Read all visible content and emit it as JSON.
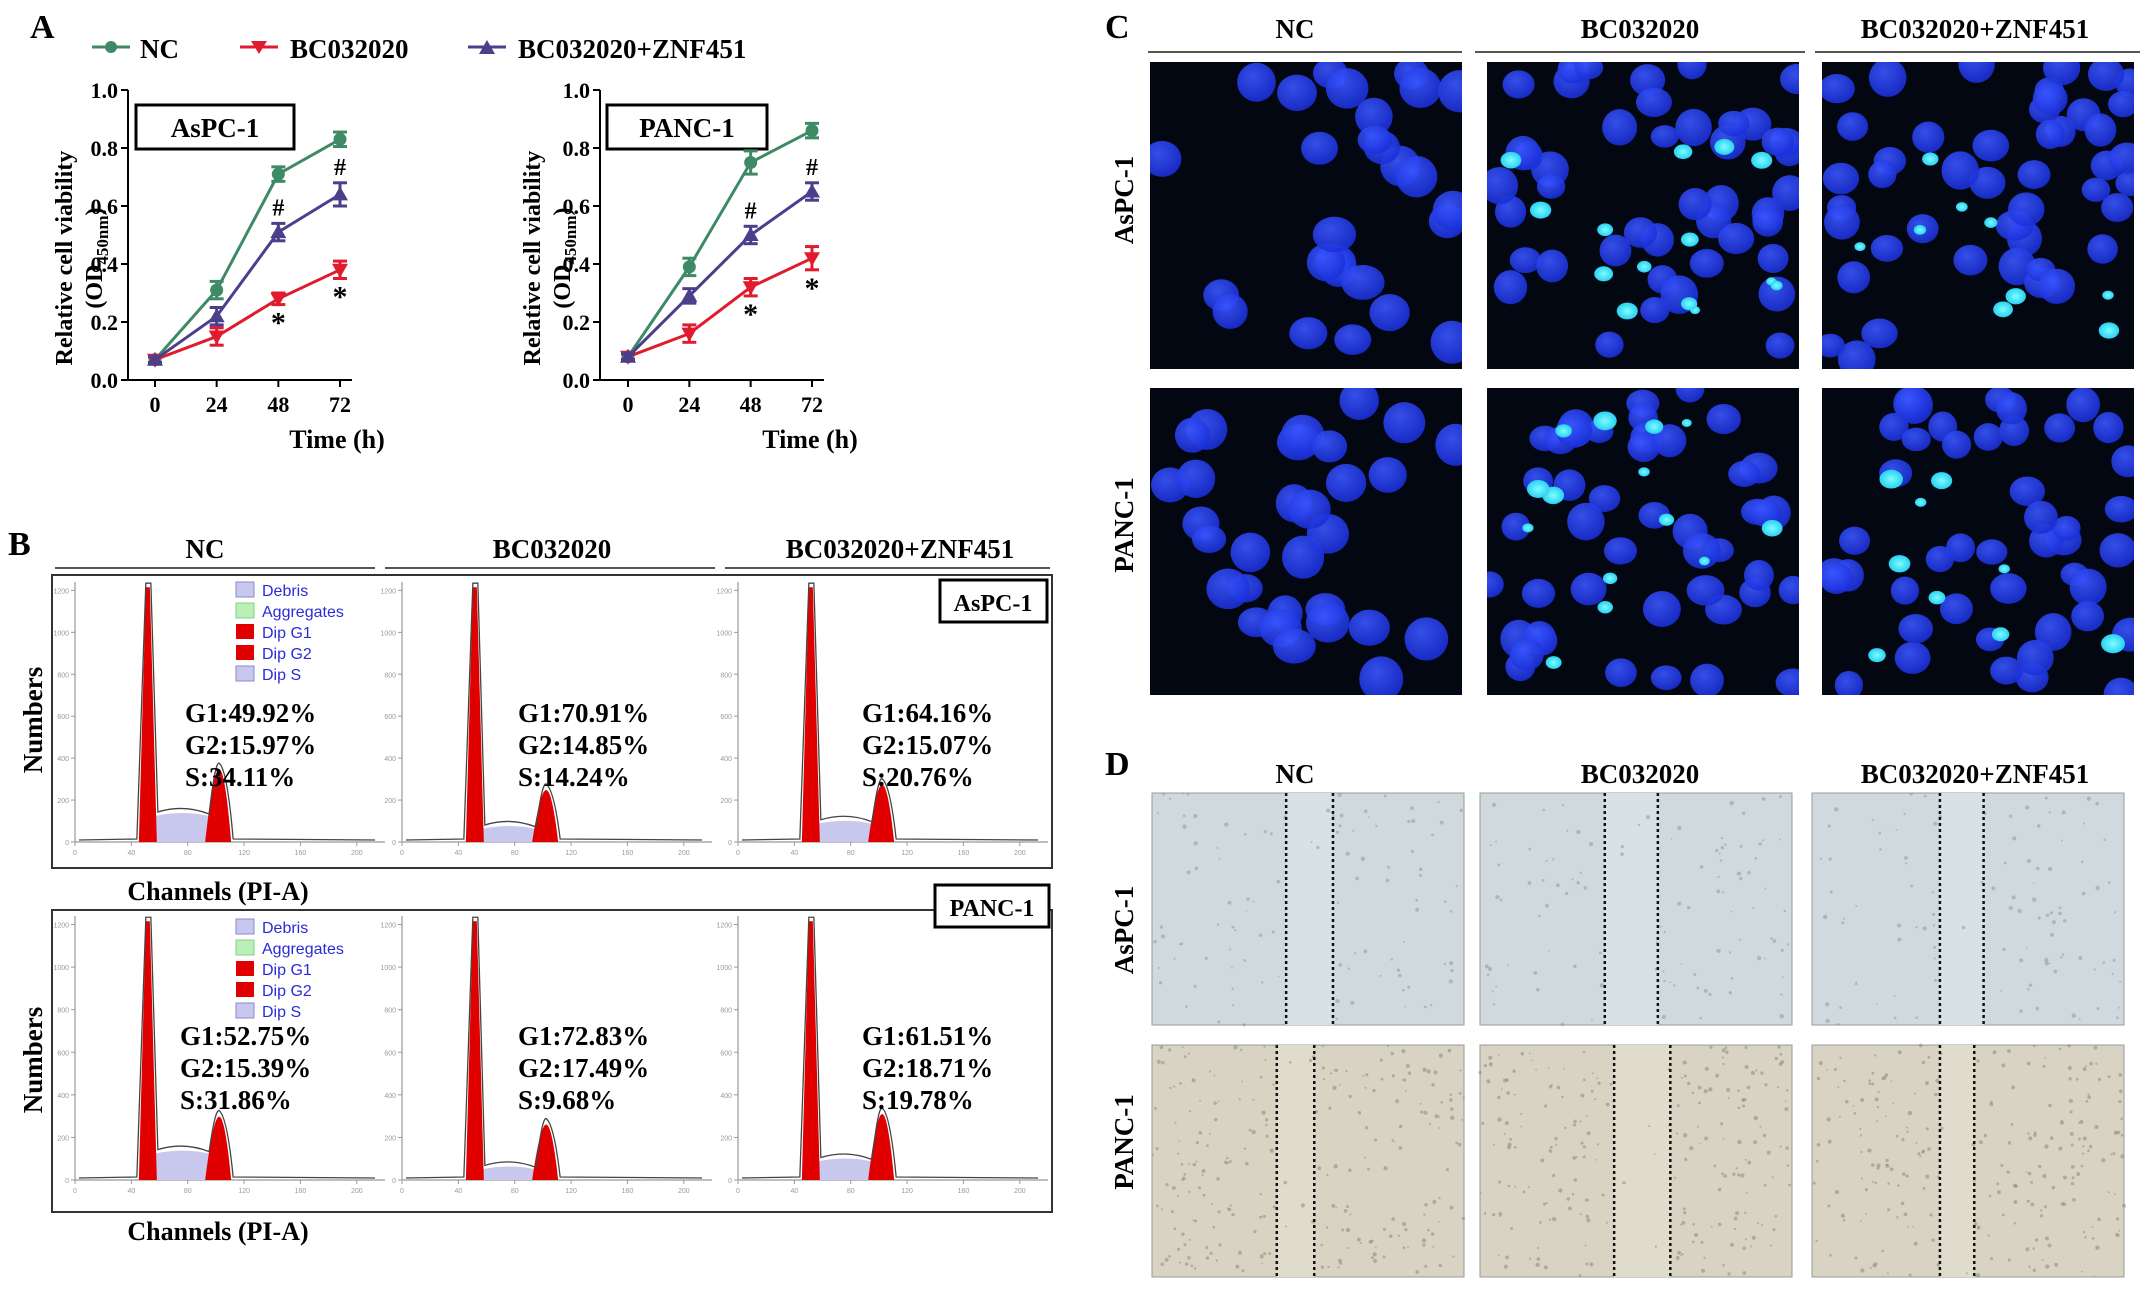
{
  "panel_letters": {
    "a": "A",
    "b": "B",
    "c": "C",
    "d": "D"
  },
  "colors": {
    "nc": "#3f8a66",
    "bc": "#e01b2e",
    "combo": "#4b3f8c",
    "peak_red": "#e00000",
    "s_phase": "#c8c8ee",
    "aggregates": "#b8f0b8",
    "legend_text": "#2b2bd6",
    "dapi_bg": "#030712",
    "dapi_cell": "#1f3cff",
    "apoptotic": "#35f0ff"
  },
  "groups": [
    "NC",
    "BC032020",
    "BC032020+ZNF451"
  ],
  "cell_lines": [
    "AsPC-1",
    "PANC-1"
  ],
  "panel_a": {
    "y_label_line1": "Relative cell viability",
    "y_label_od": "OD",
    "y_label_sub": "450nm",
    "x_label": "Time (h)",
    "sig_star": "*",
    "sig_hash": "#"
  },
  "panel_b": {
    "x_label": "Channels (PI-A)",
    "y_label": "Numbers",
    "legend_entries": [
      "Debris",
      "Aggregates",
      "Dip G1",
      "Dip G2",
      "Dip S"
    ],
    "x_ticks": [
      "0",
      "40",
      "80",
      "120",
      "160",
      "200"
    ],
    "y_ticks": [
      "0",
      "200",
      "400",
      "600",
      "800",
      "1000",
      "1200"
    ],
    "stats": [
      [
        {
          "g1": "G1:49.92%",
          "g2": "G2:15.97%",
          "s": "S:34.11%"
        },
        {
          "g1": "G1:70.91%",
          "g2": "G2:14.85%",
          "s": "S:14.24%"
        },
        {
          "g1": "G1:64.16%",
          "g2": "G2:15.07%",
          "s": "S:20.76%"
        }
      ],
      [
        {
          "g1": "G1:52.75%",
          "g2": "G2:15.39%",
          "s": "S:31.86%"
        },
        {
          "g1": "G1:72.83%",
          "g2": "G2:17.49%",
          "s": "S:9.68%"
        },
        {
          "g1": "G1:61.51%",
          "g2": "G2:18.71%",
          "s": "S:19.78%"
        }
      ]
    ]
  },
  "chart_data": [
    {
      "type": "line",
      "panel": "A",
      "cell_line": "AsPC-1",
      "x": [
        0,
        24,
        48,
        72
      ],
      "xlabel": "Time (h)",
      "ylabel": "Relative cell viability (OD450nm)",
      "ylim": [
        0.0,
        1.0
      ],
      "yticks": [
        "0.0",
        "0.2",
        "0.4",
        "0.6",
        "0.8",
        "1.0"
      ],
      "xticks": [
        "0",
        "24",
        "48",
        "72"
      ],
      "legend": "top",
      "series": [
        {
          "name": "NC",
          "marker": "circle",
          "values": [
            0.07,
            0.31,
            0.71,
            0.83
          ],
          "err": [
            0.01,
            0.03,
            0.025,
            0.025
          ]
        },
        {
          "name": "BC032020",
          "marker": "triangle-down",
          "values": [
            0.07,
            0.15,
            0.28,
            0.38
          ],
          "err": [
            0.01,
            0.03,
            0.02,
            0.03
          ]
        },
        {
          "name": "BC032020+ZNF451",
          "marker": "triangle-up",
          "values": [
            0.07,
            0.22,
            0.51,
            0.64
          ],
          "err": [
            0.01,
            0.03,
            0.03,
            0.04
          ]
        }
      ],
      "annotations": [
        {
          "text": "#",
          "x": 48,
          "series": "BC032020+ZNF451"
        },
        {
          "text": "#",
          "x": 72,
          "series": "BC032020+ZNF451"
        },
        {
          "text": "*",
          "x": 48,
          "series": "BC032020"
        },
        {
          "text": "*",
          "x": 72,
          "series": "BC032020"
        }
      ]
    },
    {
      "type": "line",
      "panel": "A",
      "cell_line": "PANC-1",
      "x": [
        0,
        24,
        48,
        72
      ],
      "xlabel": "Time (h)",
      "ylabel": "Relative cell viability (OD450nm)",
      "ylim": [
        0.0,
        1.0
      ],
      "yticks": [
        "0.0",
        "0.2",
        "0.4",
        "0.6",
        "0.8",
        "1.0"
      ],
      "xticks": [
        "0",
        "24",
        "48",
        "72"
      ],
      "legend": "top",
      "series": [
        {
          "name": "NC",
          "marker": "circle",
          "values": [
            0.08,
            0.39,
            0.75,
            0.86
          ],
          "err": [
            0.01,
            0.03,
            0.04,
            0.025
          ]
        },
        {
          "name": "BC032020",
          "marker": "triangle-down",
          "values": [
            0.08,
            0.16,
            0.32,
            0.42
          ],
          "err": [
            0.01,
            0.03,
            0.03,
            0.04
          ]
        },
        {
          "name": "BC032020+ZNF451",
          "marker": "triangle-up",
          "values": [
            0.08,
            0.29,
            0.5,
            0.65
          ],
          "err": [
            0.01,
            0.025,
            0.03,
            0.03
          ]
        }
      ],
      "annotations": [
        {
          "text": "#",
          "x": 48,
          "series": "BC032020+ZNF451"
        },
        {
          "text": "#",
          "x": 72,
          "series": "BC032020+ZNF451"
        },
        {
          "text": "*",
          "x": 48,
          "series": "BC032020"
        },
        {
          "text": "*",
          "x": 72,
          "series": "BC032020"
        }
      ]
    }
  ]
}
